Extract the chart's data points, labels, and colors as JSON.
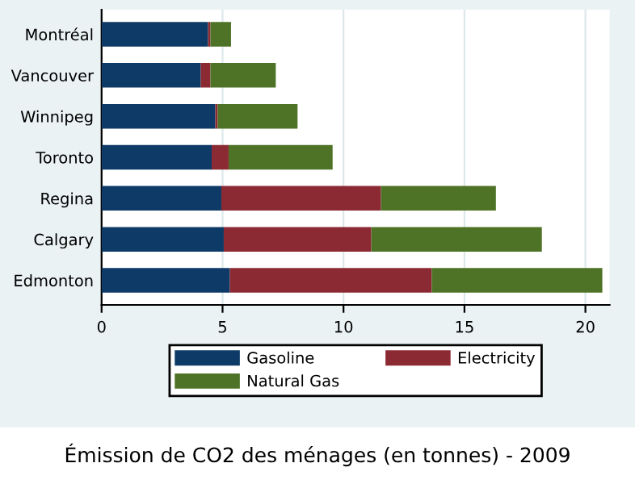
{
  "chart_data": {
    "type": "bar",
    "orientation": "horizontal",
    "stacked": true,
    "categories": [
      "Montréal",
      "Vancouver",
      "Winnipeg",
      "Toronto",
      "Regina",
      "Calgary",
      "Edmonton"
    ],
    "series": [
      {
        "name": "Gasoline",
        "color": "#0d3a66",
        "values": [
          4.4,
          4.1,
          4.7,
          4.55,
          4.95,
          5.05,
          5.3
        ]
      },
      {
        "name": "Electricity",
        "color": "#8b2a33",
        "values": [
          0.1,
          0.4,
          0.1,
          0.7,
          6.6,
          6.1,
          8.35
        ]
      },
      {
        "name": "Natural Gas",
        "color": "#4e7326",
        "values": [
          0.85,
          2.7,
          3.3,
          4.3,
          4.75,
          7.05,
          7.05
        ]
      }
    ],
    "xlim": [
      0,
      21
    ],
    "xticks": [
      0,
      5,
      10,
      15,
      20
    ],
    "grid": "x",
    "legend": "bottom",
    "annotations": [
      "Émission de CO2 des ménages (en tonnes) - 2009"
    ]
  }
}
